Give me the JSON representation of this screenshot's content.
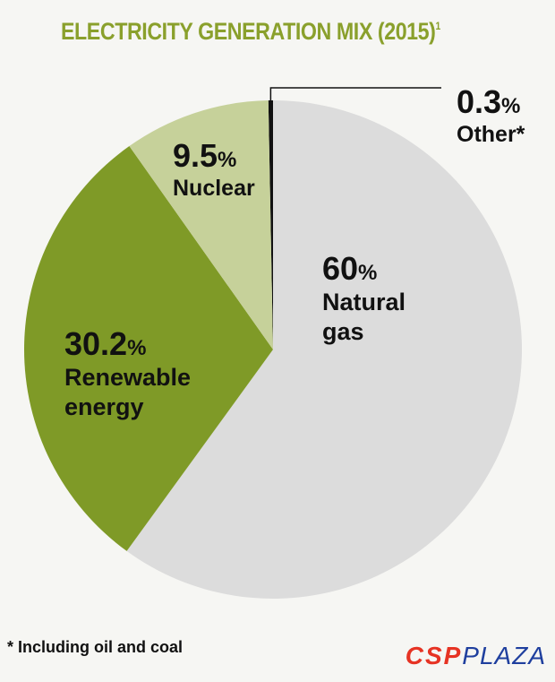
{
  "title": "ELECTRICITY GENERATION MIX (2015)",
  "title_footnote_mark": "1",
  "chart_data": {
    "type": "pie",
    "title": "ELECTRICITY GENERATION MIX (2015)",
    "slices": [
      {
        "label": "Natural gas",
        "name_lines": [
          "Natural",
          "gas"
        ],
        "value": 60,
        "value_text": "60",
        "color": "#dcdcdc"
      },
      {
        "label": "Renewable energy",
        "name_lines": [
          "Renewable",
          "energy"
        ],
        "value": 30.2,
        "value_text": "30.2",
        "color": "#7f9a27"
      },
      {
        "label": "Nuclear",
        "name_lines": [
          "Nuclear"
        ],
        "value": 9.5,
        "value_text": "9.5",
        "color": "#c6d19a"
      },
      {
        "label": "Other*",
        "name_lines": [
          "Other*"
        ],
        "value": 0.3,
        "value_text": "0.3",
        "color": "#111111"
      }
    ],
    "percent_sign": "%"
  },
  "footnote": "* Including oil and coal",
  "logo": {
    "part1": "CSP",
    "part2": "PLAZA"
  }
}
